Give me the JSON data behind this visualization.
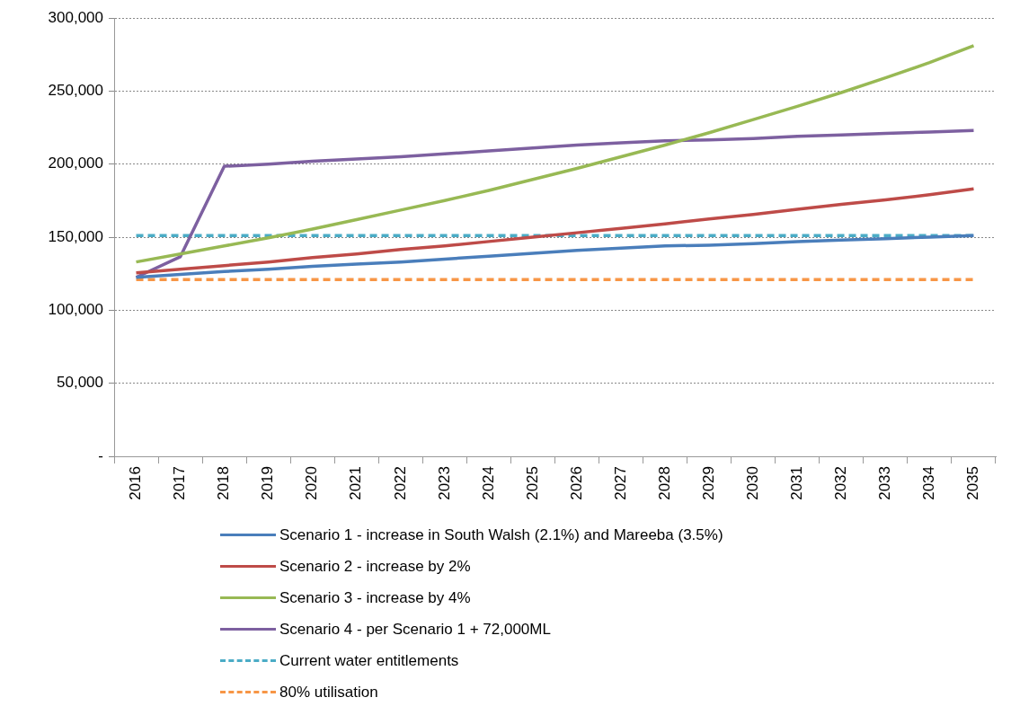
{
  "chart_data": {
    "type": "line",
    "categories": [
      "2016",
      "2017",
      "2018",
      "2019",
      "2020",
      "2021",
      "2022",
      "2023",
      "2024",
      "2025",
      "2026",
      "2027",
      "2028",
      "2029",
      "2030",
      "2031",
      "2032",
      "2033",
      "2034",
      "2035"
    ],
    "series": [
      {
        "name": "Scenario 1 - increase in South Walsh (2.1%) and Mareeba (3.5%)",
        "color": "#4a7ebb",
        "values": [
          122500,
          124500,
          126500,
          128000,
          130000,
          131500,
          133000,
          135000,
          137000,
          139000,
          141000,
          142500,
          144000,
          144500,
          145500,
          147000,
          148000,
          149000,
          150000,
          151000
        ]
      },
      {
        "name": "Scenario 2 - increase by 2%",
        "color": "#be4b48",
        "values": [
          125500,
          128000,
          130500,
          133000,
          136000,
          138500,
          141500,
          144000,
          147000,
          150000,
          153000,
          156000,
          159000,
          162500,
          165500,
          169000,
          172500,
          175500,
          179000,
          183000
        ]
      },
      {
        "name": "Scenario 3 - increase by 4%",
        "color": "#98b954",
        "values": [
          133000,
          138500,
          144000,
          149500,
          155500,
          162000,
          168500,
          175000,
          182000,
          189500,
          197000,
          205000,
          213000,
          221500,
          230500,
          239500,
          249000,
          259000,
          269500,
          281000
        ]
      },
      {
        "name": "Scenario 4 - per Scenario 1 + 72,000ML",
        "color": "#7d60a0",
        "values": [
          122500,
          136500,
          198500,
          200000,
          202000,
          203500,
          205000,
          207000,
          209000,
          211000,
          213000,
          214500,
          216000,
          216500,
          217500,
          219000,
          220000,
          221000,
          222000,
          223000
        ]
      },
      {
        "name": "Current water entitlements",
        "color": "#4bacc6",
        "line_style": "dashed",
        "values": [
          151000,
          151000,
          151000,
          151000,
          151000,
          151000,
          151000,
          151000,
          151000,
          151000,
          151000,
          151000,
          151000,
          151000,
          151000,
          151000,
          151000,
          151000,
          151000,
          151000
        ]
      },
      {
        "name": "80% utilisation",
        "color": "#f79646",
        "line_style": "dashed",
        "values": [
          121000,
          121000,
          121000,
          121000,
          121000,
          121000,
          121000,
          121000,
          121000,
          121000,
          121000,
          121000,
          121000,
          121000,
          121000,
          121000,
          121000,
          121000,
          121000,
          121000
        ]
      }
    ],
    "ylim": [
      0,
      300000
    ],
    "yticks": [
      {
        "value": 0,
        "label": "-"
      },
      {
        "value": 50000,
        "label": "50,000"
      },
      {
        "value": 100000,
        "label": "100,000"
      },
      {
        "value": 150000,
        "label": "150,000"
      },
      {
        "value": 200000,
        "label": "200,000"
      },
      {
        "value": 250000,
        "label": "250,000"
      },
      {
        "value": 300000,
        "label": "300,000"
      }
    ],
    "grid": "y",
    "legend": "bottom",
    "marker": "none",
    "line_style": "solid"
  }
}
